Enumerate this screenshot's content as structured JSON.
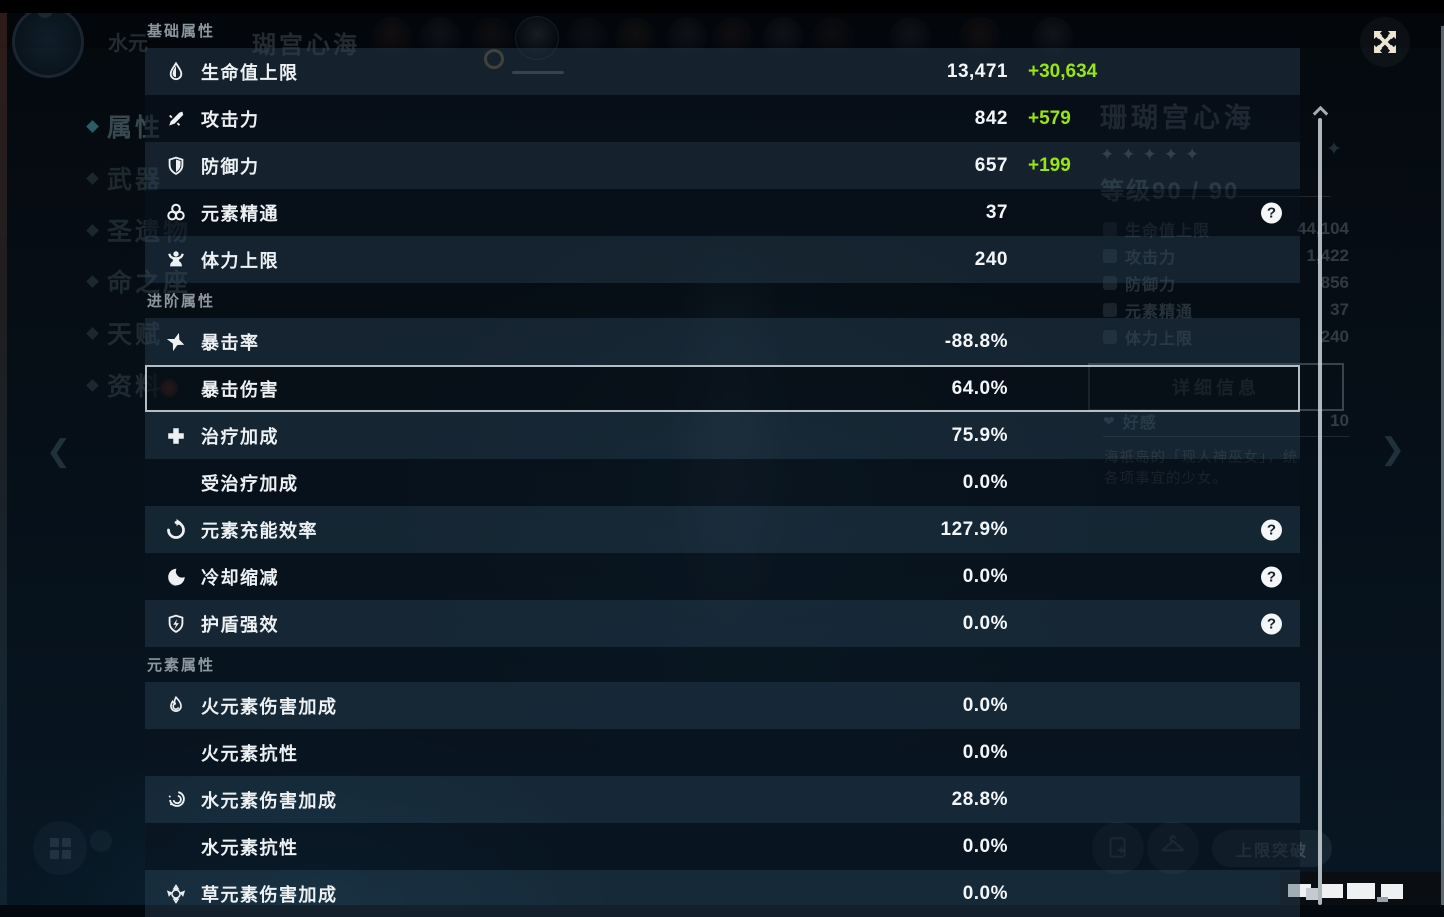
{
  "colors": {
    "bonus_green": "#97e512",
    "highlight_border": "#d4dce3",
    "scrollbar": "#cdd6dc",
    "close_glyph": "#ece5d4"
  },
  "overlay": {
    "sections": [
      {
        "title": "基础属性",
        "rows": [
          {
            "icon": "hp-icon",
            "label": "生命值上限",
            "value": "13,471",
            "bonus": "+30,634"
          },
          {
            "icon": "atk-icon",
            "label": "攻击力",
            "value": "842",
            "bonus": "+579"
          },
          {
            "icon": "def-icon",
            "label": "防御力",
            "value": "657",
            "bonus": "+199"
          },
          {
            "icon": "em-icon",
            "label": "元素精通",
            "value": "37",
            "question": true
          },
          {
            "icon": "stamina-icon",
            "label": "体力上限",
            "value": "240"
          }
        ]
      },
      {
        "title": "进阶属性",
        "rows": [
          {
            "icon": "crit-rate-icon",
            "label": "暴击率",
            "value": "-88.8%"
          },
          {
            "icon": null,
            "label": "暴击伤害",
            "value": "64.0%",
            "selected": true
          },
          {
            "icon": "healing-icon",
            "label": "治疗加成",
            "value": "75.9%"
          },
          {
            "icon": null,
            "label": "受治疗加成",
            "value": "0.0%"
          },
          {
            "icon": "er-icon",
            "label": "元素充能效率",
            "value": "127.9%",
            "question": true
          },
          {
            "icon": "cd-icon",
            "label": "冷却缩减",
            "value": "0.0%",
            "question": true
          },
          {
            "icon": "shield-icon",
            "label": "护盾强效",
            "value": "0.0%",
            "question": true
          }
        ]
      },
      {
        "title": "元素属性",
        "rows": [
          {
            "icon": "pyro-icon",
            "label": "火元素伤害加成",
            "value": "0.0%"
          },
          {
            "icon": null,
            "label": "火元素抗性",
            "value": "0.0%"
          },
          {
            "icon": "hydro-icon",
            "label": "水元素伤害加成",
            "value": "28.8%"
          },
          {
            "icon": null,
            "label": "水元素抗性",
            "value": "0.0%"
          },
          {
            "icon": "dendro-icon",
            "label": "草元素伤害加成",
            "value": "0.0%"
          }
        ]
      }
    ]
  },
  "background": {
    "top_fragment_left": "水元",
    "top_fragment_right": "瑚宫心海",
    "sidebar_items": [
      {
        "label": "属性",
        "selected": true
      },
      {
        "label": "武器"
      },
      {
        "label": "圣遗物"
      },
      {
        "label": "命之座"
      },
      {
        "label": "天赋"
      },
      {
        "label": "资料"
      }
    ],
    "character_panel": {
      "name": "珊瑚宫心海",
      "star_count": 5,
      "star_glyph": "✦",
      "level_label": "等级90 / 90",
      "stats": [
        {
          "label": "生命值上限",
          "value": "44,104"
        },
        {
          "label": "攻击力",
          "value": "1,422"
        },
        {
          "label": "防御力",
          "value": "856"
        },
        {
          "label": "元素精通",
          "value": "37"
        },
        {
          "label": "体力上限",
          "value": "240"
        }
      ],
      "details_button": "详细信息",
      "friendship_label": "好感",
      "friendship_value": "10",
      "heart_glyph": "❤",
      "description_line1": "海祇岛的「现人神巫女」，统",
      "description_line2": "各项事宜的少女。"
    },
    "bottom_right": {
      "breakthrough_button": "上限突破"
    },
    "nav": {
      "prev_glyph": "❮",
      "next_glyph": "❯",
      "sparkle_glyph": "✦"
    }
  }
}
